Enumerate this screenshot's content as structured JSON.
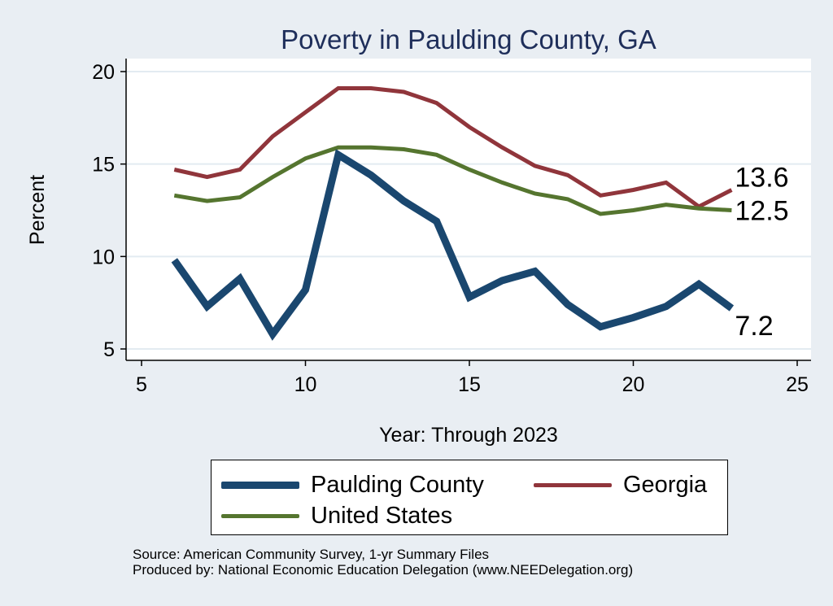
{
  "chart_data": {
    "type": "line",
    "title": "Poverty in Paulding County, GA",
    "xlabel": "Year: Through 2023",
    "ylabel": "Percent",
    "xlim": [
      5,
      25
    ],
    "ylim": [
      5,
      20
    ],
    "x_ticks": [
      5,
      10,
      15,
      20,
      25
    ],
    "y_ticks": [
      5,
      10,
      15,
      20
    ],
    "grid": true,
    "legend_position": "bottom",
    "series": [
      {
        "name": "Paulding County",
        "color": "#1a476f",
        "x": [
          6,
          7,
          8,
          9,
          10,
          11,
          12,
          13,
          14,
          15,
          16,
          17,
          18,
          19,
          20,
          21,
          22,
          23
        ],
        "values": [
          9.8,
          7.3,
          8.8,
          5.8,
          8.2,
          15.5,
          14.4,
          13.0,
          11.9,
          7.8,
          8.7,
          9.2,
          7.4,
          6.2,
          6.7,
          7.3,
          8.5,
          7.2
        ],
        "end_label": "7.2",
        "line_width": 9
      },
      {
        "name": "Georgia",
        "color": "#90353b",
        "x": [
          6,
          7,
          8,
          9,
          10,
          11,
          12,
          13,
          14,
          15,
          16,
          17,
          18,
          19,
          20,
          21,
          22,
          23
        ],
        "values": [
          14.7,
          14.3,
          14.7,
          16.5,
          17.8,
          19.1,
          19.1,
          18.9,
          18.3,
          17.0,
          15.9,
          14.9,
          14.4,
          13.3,
          13.6,
          14.0,
          12.7,
          13.6
        ],
        "end_label": "13.6",
        "line_width": 5
      },
      {
        "name": "United States",
        "color": "#55752f",
        "x": [
          6,
          7,
          8,
          9,
          10,
          11,
          12,
          13,
          14,
          15,
          16,
          17,
          18,
          19,
          20,
          21,
          22,
          23
        ],
        "values": [
          13.3,
          13.0,
          13.2,
          14.3,
          15.3,
          15.9,
          15.9,
          15.8,
          15.5,
          14.7,
          14.0,
          13.4,
          13.1,
          12.3,
          12.5,
          12.8,
          12.6,
          12.5
        ],
        "end_label": "12.5",
        "line_width": 5
      }
    ]
  },
  "notes": {
    "source": "Source: American Community Survey, 1-yr Summary Files",
    "produced_by": "Produced by: National Economic Education Delegation (www.NEEDelegation.org)"
  }
}
